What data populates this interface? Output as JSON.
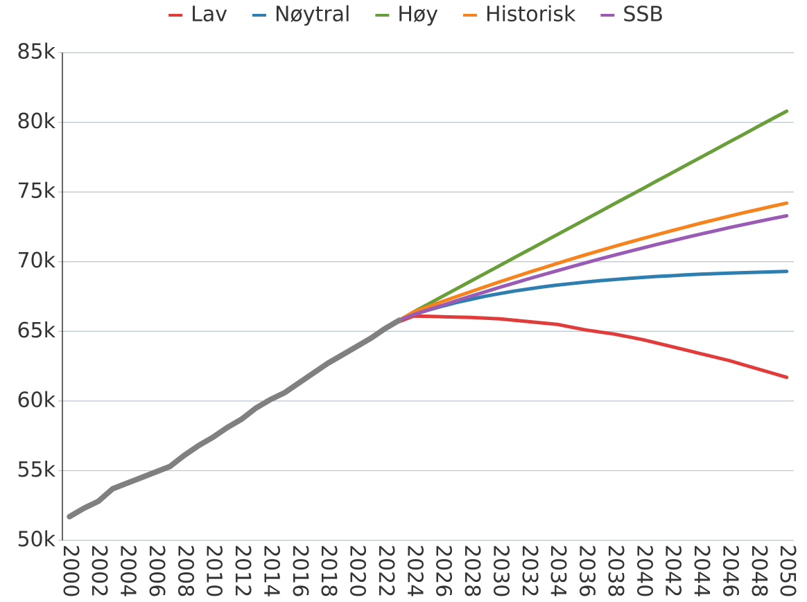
{
  "chart_data": {
    "type": "line",
    "x": [
      2000,
      2001,
      2002,
      2003,
      2004,
      2005,
      2006,
      2007,
      2008,
      2009,
      2010,
      2011,
      2012,
      2013,
      2014,
      2015,
      2016,
      2017,
      2018,
      2019,
      2020,
      2021,
      2022,
      2023,
      2024,
      2025,
      2026,
      2027,
      2028,
      2029,
      2030,
      2031,
      2032,
      2033,
      2034,
      2035,
      2036,
      2037,
      2038,
      2039,
      2040,
      2041,
      2042,
      2043,
      2044,
      2045,
      2046,
      2047,
      2048,
      2049,
      2050
    ],
    "series": [
      {
        "name": "Lav",
        "color": "#e03c3c",
        "values": [
          null,
          null,
          null,
          null,
          null,
          null,
          null,
          null,
          null,
          null,
          null,
          null,
          null,
          null,
          null,
          null,
          null,
          null,
          null,
          null,
          null,
          null,
          null,
          65700,
          66100,
          66080,
          66050,
          66020,
          66000,
          65950,
          65900,
          65800,
          65700,
          65600,
          65500,
          65300,
          65100,
          64950,
          64800,
          64600,
          64400,
          64150,
          63900,
          63650,
          63400,
          63150,
          62900,
          62600,
          62300,
          62000,
          61700
        ]
      },
      {
        "name": "Nøytral",
        "color": "#2e7fb0",
        "values": [
          null,
          null,
          null,
          null,
          null,
          null,
          null,
          null,
          null,
          null,
          null,
          null,
          null,
          null,
          null,
          null,
          null,
          null,
          null,
          null,
          null,
          null,
          null,
          65800,
          66200,
          66520,
          66810,
          67070,
          67300,
          67520,
          67710,
          67890,
          68040,
          68190,
          68320,
          68430,
          68540,
          68640,
          68720,
          68800,
          68870,
          68940,
          68990,
          69050,
          69100,
          69140,
          69180,
          69210,
          69240,
          69270,
          69300
        ]
      },
      {
        "name": "Høy",
        "color": "#6a9e3a",
        "values": [
          null,
          null,
          null,
          null,
          null,
          null,
          null,
          null,
          null,
          null,
          null,
          null,
          null,
          null,
          null,
          null,
          null,
          null,
          null,
          null,
          null,
          null,
          null,
          65800,
          66400,
          66950,
          67510,
          68060,
          68620,
          69170,
          69720,
          70280,
          70830,
          71390,
          71940,
          72490,
          73050,
          73600,
          74160,
          74710,
          75260,
          75820,
          76370,
          76930,
          77480,
          78030,
          78590,
          79140,
          79700,
          80250,
          80800
        ]
      },
      {
        "name": "Historisk",
        "color": "#f5841f",
        "values": [
          null,
          null,
          null,
          null,
          null,
          null,
          null,
          null,
          null,
          null,
          null,
          null,
          null,
          null,
          null,
          null,
          null,
          null,
          null,
          null,
          null,
          null,
          null,
          65800,
          66400,
          66770,
          67140,
          67500,
          67860,
          68210,
          68560,
          68890,
          69230,
          69550,
          69870,
          70190,
          70500,
          70800,
          71100,
          71390,
          71670,
          71950,
          72230,
          72490,
          72760,
          73010,
          73260,
          73510,
          73740,
          73980,
          74200
        ]
      },
      {
        "name": "SSB",
        "color": "#9a5bb5",
        "values": [
          null,
          null,
          null,
          null,
          null,
          null,
          null,
          null,
          null,
          null,
          null,
          null,
          null,
          null,
          null,
          null,
          null,
          null,
          null,
          null,
          null,
          null,
          null,
          65800,
          66200,
          66540,
          66870,
          67200,
          67530,
          67840,
          68160,
          68460,
          68770,
          69060,
          69350,
          69640,
          69920,
          70200,
          70470,
          70730,
          70990,
          71250,
          71490,
          71740,
          71980,
          72210,
          72440,
          72660,
          72880,
          73090,
          73290
        ]
      },
      {
        "color": "#808080",
        "values": [
          51700,
          52300,
          52800,
          53700,
          54100,
          54500,
          54900,
          55300,
          56100,
          56800,
          57400,
          58100,
          58700,
          59500,
          60100,
          60600,
          61300,
          62000,
          62700,
          63300,
          63900,
          64500,
          65200,
          65800,
          null,
          null,
          null,
          null,
          null,
          null,
          null,
          null,
          null,
          null,
          null,
          null,
          null,
          null,
          null,
          null,
          null,
          null,
          null,
          null,
          null,
          null,
          null,
          null,
          null,
          null,
          null
        ]
      }
    ],
    "xlim": [
      1999.5,
      2050.5
    ],
    "xticks": [
      2000,
      2002,
      2004,
      2006,
      2008,
      2010,
      2012,
      2014,
      2016,
      2018,
      2020,
      2022,
      2024,
      2026,
      2028,
      2030,
      2032,
      2034,
      2036,
      2038,
      2040,
      2042,
      2044,
      2046,
      2048,
      2050
    ],
    "ylim": [
      50000,
      85000
    ],
    "yticks": [
      {
        "value": 50000,
        "label": "50k"
      },
      {
        "value": 55000,
        "label": "55k"
      },
      {
        "value": 60000,
        "label": "60k"
      },
      {
        "value": 65000,
        "label": "65k"
      },
      {
        "value": 70000,
        "label": "70k"
      },
      {
        "value": 75000,
        "label": "75k"
      },
      {
        "value": 80000,
        "label": "80k"
      },
      {
        "value": 85000,
        "label": "85k"
      }
    ],
    "grid": true
  }
}
